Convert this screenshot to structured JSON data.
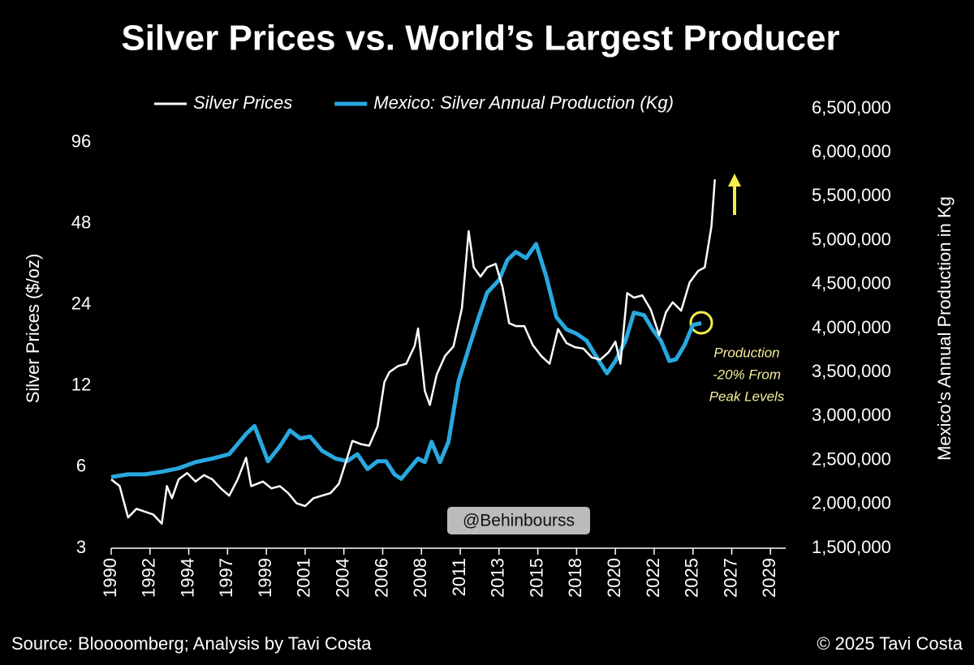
{
  "chart_data": {
    "type": "line",
    "title": "Silver Prices vs. World’s Largest Producer",
    "y_label": "Silver Prices ($/oz)",
    "y2_label": "Mexico's Annual Production in Kg",
    "source": "Source: Bloooomberg; Analysis by Tavi Costa",
    "copyright": "© 2025 Tavi Costa",
    "watermark": "@Behinbourss",
    "annotation": [
      "Production",
      "-20% From",
      "Peak Levels"
    ],
    "log_y": true,
    "xlim": [
      1990,
      2030
    ],
    "xticks": [
      {
        "value": 1990,
        "label": "1990"
      },
      {
        "value": 1992.3,
        "label": "1992"
      },
      {
        "value": 1994.6,
        "label": "1994"
      },
      {
        "value": 1996.9,
        "label": "1997"
      },
      {
        "value": 1999.2,
        "label": "1999"
      },
      {
        "value": 2001.5,
        "label": "2001"
      },
      {
        "value": 2003.8,
        "label": "2004"
      },
      {
        "value": 2006.1,
        "label": "2006"
      },
      {
        "value": 2008.4,
        "label": "2008"
      },
      {
        "value": 2010.7,
        "label": "2011"
      },
      {
        "value": 2013.0,
        "label": "2013"
      },
      {
        "value": 2015.3,
        "label": "2015"
      },
      {
        "value": 2017.6,
        "label": "2018"
      },
      {
        "value": 2019.9,
        "label": "2020"
      },
      {
        "value": 2022.2,
        "label": "2022"
      },
      {
        "value": 2024.5,
        "label": "2025"
      },
      {
        "value": 2026.8,
        "label": "2027"
      },
      {
        "value": 2029.1,
        "label": "2029"
      }
    ],
    "ylim": [
      3,
      128
    ],
    "yticks": [
      3,
      6,
      12,
      24,
      48,
      96
    ],
    "y2lim": [
      1500000,
      6500000
    ],
    "y2ticks": [
      {
        "value": 1500000,
        "label": "1,500,000"
      },
      {
        "value": 2000000,
        "label": "2,000,000"
      },
      {
        "value": 2500000,
        "label": "2,500,000"
      },
      {
        "value": 3000000,
        "label": "3,000,000"
      },
      {
        "value": 3500000,
        "label": "3,500,000"
      },
      {
        "value": 4000000,
        "label": "4,000,000"
      },
      {
        "value": 4500000,
        "label": "4,500,000"
      },
      {
        "value": 5000000,
        "label": "5,000,000"
      },
      {
        "value": 5500000,
        "label": "5,500,000"
      },
      {
        "value": 6000000,
        "label": "6,000,000"
      },
      {
        "value": 6500000,
        "label": "6,500,000"
      }
    ],
    "series": [
      {
        "name": "Silver Prices",
        "color": "#ffffff",
        "axis": "y",
        "x": [
          1990.0,
          1990.5,
          1991.0,
          1991.5,
          1992.0,
          1992.5,
          1993.0,
          1993.3,
          1993.6,
          1994.0,
          1994.5,
          1995.0,
          1995.5,
          1996.0,
          1996.5,
          1997.0,
          1997.5,
          1998.0,
          1998.3,
          1999.0,
          1999.5,
          2000.0,
          2000.5,
          2001.0,
          2001.5,
          2002.0,
          2002.5,
          2003.0,
          2003.5,
          2004.0,
          2004.3,
          2004.8,
          2005.3,
          2005.8,
          2006.2,
          2006.5,
          2007.0,
          2007.5,
          2008.0,
          2008.2,
          2008.6,
          2008.9,
          2009.3,
          2009.8,
          2010.3,
          2010.8,
          2011.2,
          2011.5,
          2011.9,
          2012.3,
          2012.8,
          2013.2,
          2013.6,
          2014.0,
          2014.5,
          2015.0,
          2015.5,
          2016.0,
          2016.5,
          2017.0,
          2017.5,
          2018.0,
          2018.5,
          2019.0,
          2019.5,
          2019.9,
          2020.2,
          2020.6,
          2021.0,
          2021.5,
          2022.0,
          2022.5,
          2022.9,
          2023.3,
          2023.8,
          2024.3,
          2024.8,
          2025.2,
          2025.6,
          2025.8
        ],
        "values": [
          5.4,
          5.1,
          3.9,
          4.2,
          4.1,
          4.0,
          3.7,
          5.1,
          4.6,
          5.4,
          5.7,
          5.3,
          5.6,
          5.4,
          5.0,
          4.7,
          5.4,
          6.5,
          5.1,
          5.3,
          5.0,
          5.1,
          4.8,
          4.4,
          4.3,
          4.6,
          4.7,
          4.8,
          5.2,
          6.5,
          7.5,
          7.3,
          7.2,
          8.5,
          12.4,
          13.5,
          14.2,
          14.5,
          16.9,
          19.6,
          11.5,
          10.2,
          13.2,
          15.5,
          16.8,
          23.3,
          45.0,
          33,
          30.5,
          33,
          34,
          28,
          20.5,
          20,
          20,
          17,
          15.5,
          14.5,
          19.5,
          17.3,
          16.7,
          16.5,
          15.3,
          15,
          16,
          17.5,
          14.5,
          26.5,
          25.5,
          26,
          23,
          18.5,
          22.5,
          24.5,
          22.8,
          29,
          32,
          33,
          47,
          70
        ]
      },
      {
        "name": "Mexico: Silver Annual Production (Kg)",
        "color": "#29a8e0",
        "axis": "y2",
        "x": [
          1990.0,
          1991.0,
          1992.0,
          1993.0,
          1994.0,
          1995.0,
          1996.0,
          1997.0,
          1998.0,
          1998.5,
          1999.3,
          2000.0,
          2000.6,
          2001.2,
          2001.8,
          2002.5,
          2003.3,
          2004.0,
          2004.6,
          2005.2,
          2005.8,
          2006.3,
          2006.8,
          2007.2,
          2007.8,
          2008.2,
          2008.6,
          2009.0,
          2009.5,
          2010.0,
          2010.6,
          2011.2,
          2011.8,
          2012.3,
          2013.0,
          2013.5,
          2014.0,
          2014.6,
          2015.2,
          2015.8,
          2016.4,
          2017.0,
          2017.6,
          2018.2,
          2018.8,
          2019.4,
          2019.9,
          2020.5,
          2021.0,
          2021.6,
          2022.1,
          2022.6,
          2023.1,
          2023.5,
          2024.0,
          2024.5,
          2025.0
        ],
        "values": [
          2310000,
          2340000,
          2340000,
          2370000,
          2410000,
          2480000,
          2520000,
          2570000,
          2800000,
          2890000,
          2490000,
          2660000,
          2840000,
          2750000,
          2770000,
          2610000,
          2520000,
          2490000,
          2570000,
          2400000,
          2490000,
          2490000,
          2340000,
          2290000,
          2430000,
          2520000,
          2480000,
          2710000,
          2480000,
          2710000,
          3400000,
          3770000,
          4130000,
          4410000,
          4550000,
          4780000,
          4870000,
          4800000,
          4960000,
          4590000,
          4130000,
          3990000,
          3940000,
          3860000,
          3670000,
          3490000,
          3630000,
          3860000,
          4180000,
          4150000,
          3990000,
          3860000,
          3630000,
          3650000,
          3810000,
          4040000,
          4060000
        ]
      }
    ]
  }
}
